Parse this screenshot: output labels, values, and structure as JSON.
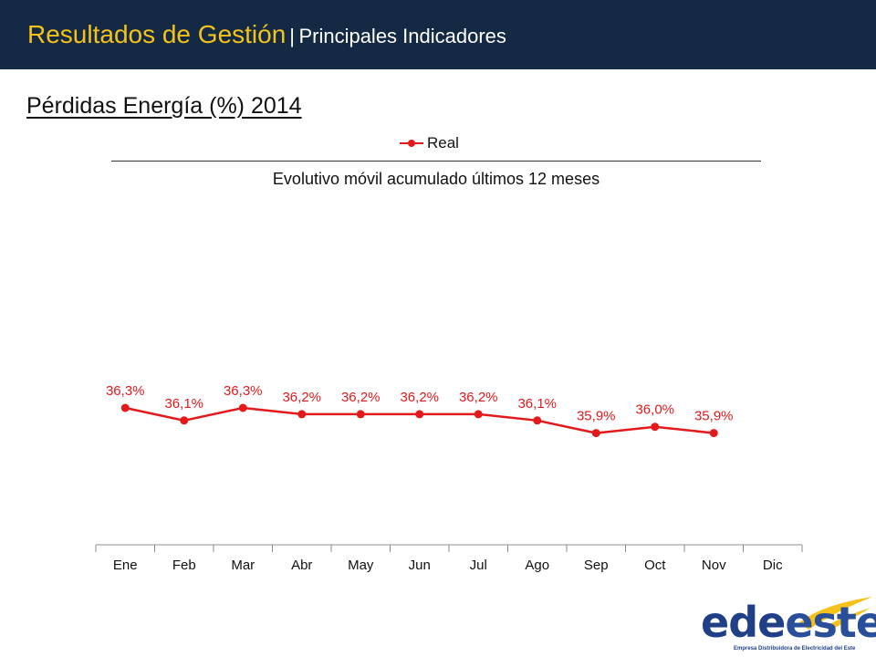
{
  "header": {
    "title": "Resultados de Gestión",
    "separator": "|",
    "subtitle": "Principales Indicadores"
  },
  "section_title": "Pérdidas Energía (%) 2014",
  "logo": {
    "word_part1": "ede",
    "word_part2": "este",
    "tagline": "Empresa Distribuidora de Electricidad del Este",
    "swoosh_color": "#f4c21b"
  },
  "colors": {
    "header_bg": "#142a44",
    "title_accent": "#f4c21b",
    "series": "#e31a1c"
  },
  "chart_data": {
    "type": "line",
    "title": "Evolutivo móvil  acumulado últimos 12 meses",
    "categories": [
      "Ene",
      "Feb",
      "Mar",
      "Abr",
      "May",
      "Jun",
      "Jul",
      "Ago",
      "Sep",
      "Oct",
      "Nov",
      "Dic"
    ],
    "series": [
      {
        "name": "Real",
        "color": "#e31a1c",
        "values": [
          36.3,
          36.1,
          36.3,
          36.2,
          36.2,
          36.2,
          36.2,
          36.1,
          35.9,
          36.0,
          35.9,
          null
        ],
        "labels": [
          "36,3%",
          "36,1%",
          "36,3%",
          "36,2%",
          "36,2%",
          "36,2%",
          "36,2%",
          "36,1%",
          "35,9%",
          "36,0%",
          "35,9%",
          null
        ]
      }
    ],
    "legend_position": "top",
    "y_axis_visible": false,
    "grid": false
  }
}
